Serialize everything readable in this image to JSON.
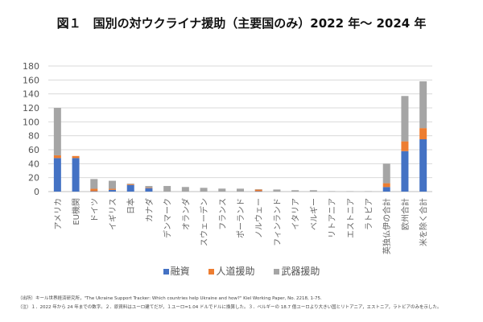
{
  "title": "図１　国別の対ウクライナ援助（主要国のみ）2022 年〜 2024 年",
  "chart_data": {
    "type": "bar",
    "stacked": true,
    "title": "図１　国別の対ウクライナ援助（主要国のみ）2022 年〜 2024 年",
    "xlabel": "",
    "ylabel": "",
    "ylim": [
      0,
      180
    ],
    "yticks": [
      0,
      20,
      40,
      60,
      80,
      100,
      120,
      140,
      160,
      180
    ],
    "grid": true,
    "legend_position": "bottom",
    "categories": [
      "アメリカ",
      "EU機関",
      "ドイツ",
      "イギリス",
      "日本",
      "カナダ",
      "デンマーク",
      "オランダ",
      "スウェーデン",
      "フランス",
      "ポーランド",
      "ノルウェー",
      "フィンランド",
      "イタリア",
      "ベルギー",
      "リトアニア",
      "エストニア",
      "ラトビア",
      "英独仏伊の合計",
      "欧州合計",
      "米を除く合計"
    ],
    "series": [
      {
        "name": "融資",
        "color": "#4472C4",
        "values": [
          48,
          48,
          0.5,
          2.5,
          9.5,
          5,
          0,
          0,
          0,
          0,
          0,
          0.5,
          0,
          0,
          0,
          0,
          0,
          0,
          6.5,
          58,
          75
        ]
      },
      {
        "name": "人道援助",
        "color": "#ED7D31",
        "values": [
          4,
          3,
          3.5,
          1.5,
          1.2,
          0.7,
          0,
          0,
          0,
          0,
          0,
          2.5,
          0,
          0,
          0,
          0,
          0,
          0,
          5.5,
          14,
          16
        ]
      },
      {
        "name": "武器援助",
        "color": "#A5A5A5",
        "values": [
          68,
          0,
          14,
          11.5,
          0.8,
          2.3,
          8,
          6.6,
          5.4,
          4.3,
          4.2,
          0.3,
          3,
          2,
          2,
          0.6,
          0.5,
          0.5,
          28,
          65,
          67
        ]
      }
    ]
  },
  "legend": {
    "items": [
      {
        "label": "融資",
        "color": "#4472C4"
      },
      {
        "label": "人道援助",
        "color": "#ED7D31"
      },
      {
        "label": "武器援助",
        "color": "#A5A5A5"
      }
    ]
  },
  "notes": {
    "source": "（出所）キール世界経済研究所，\"The Ukraine Support Tracker: Which countries help Ukraine and how?\" Kiel Working Paper, No. 2218, 1-75.",
    "note": "（注）１．2022 年から 24 年までの数字。２．原資料はユーロ建てだが，１ユーロ=1.04 ドルでドルに換算した。３．ベルギーの 18.7 億ユーロより大きい国とリトアニア，エストニア，ラトビアのみを示した。"
  }
}
